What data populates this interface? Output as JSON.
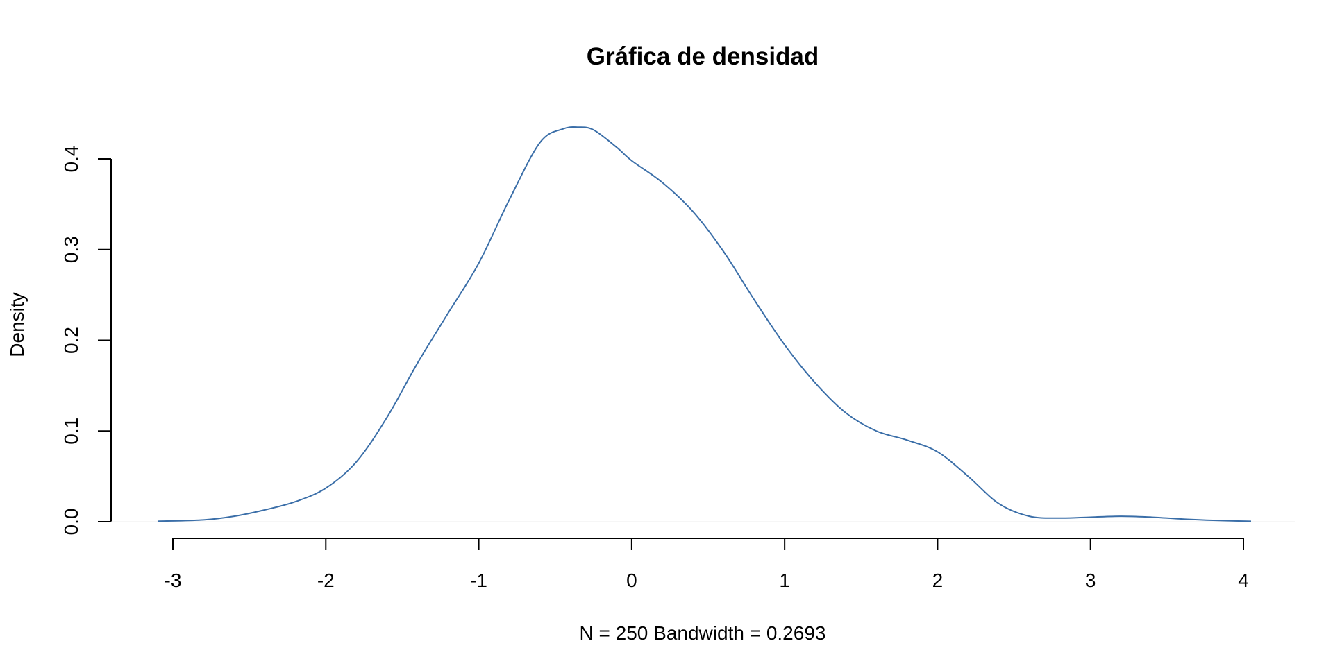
{
  "chart_data": {
    "type": "line",
    "title": "Gráfica de densidad",
    "xlabel": "N = 250   Bandwidth = 0.2693",
    "ylabel": "Density",
    "xlim": [
      -3.1,
      4.05
    ],
    "ylim": [
      0,
      0.4
    ],
    "x_ticks": [
      -3,
      -2,
      -1,
      0,
      1,
      2,
      3,
      4
    ],
    "x_tick_labels": [
      "-3",
      "-2",
      "-1",
      "0",
      "1",
      "2",
      "3",
      "4"
    ],
    "y_ticks": [
      0,
      0.1,
      0.2,
      0.3,
      0.4
    ],
    "y_tick_labels": [
      "0.0",
      "0.1",
      "0.2",
      "0.3",
      "0.4"
    ],
    "grid": false,
    "legend": "none",
    "colors": {
      "curve": "#3a6ea8",
      "zero_line": "#eeeeee"
    },
    "series": [
      {
        "x": [
          -3.1,
          -2.8,
          -2.6,
          -2.4,
          -2.2,
          -2.0,
          -1.8,
          -1.6,
          -1.4,
          -1.2,
          -1.0,
          -0.8,
          -0.6,
          -0.45,
          -0.35,
          -0.25,
          -0.1,
          0.0,
          0.2,
          0.4,
          0.6,
          0.8,
          1.0,
          1.2,
          1.4,
          1.6,
          1.8,
          2.0,
          2.2,
          2.4,
          2.6,
          2.8,
          3.0,
          3.2,
          3.4,
          3.6,
          3.8,
          4.05
        ],
        "y": [
          0.0005,
          0.002,
          0.006,
          0.013,
          0.022,
          0.037,
          0.066,
          0.115,
          0.175,
          0.23,
          0.285,
          0.355,
          0.418,
          0.433,
          0.435,
          0.432,
          0.413,
          0.398,
          0.374,
          0.342,
          0.298,
          0.245,
          0.195,
          0.153,
          0.12,
          0.1,
          0.09,
          0.077,
          0.05,
          0.02,
          0.006,
          0.004,
          0.005,
          0.006,
          0.005,
          0.003,
          0.0015,
          0.0005
        ]
      }
    ]
  }
}
